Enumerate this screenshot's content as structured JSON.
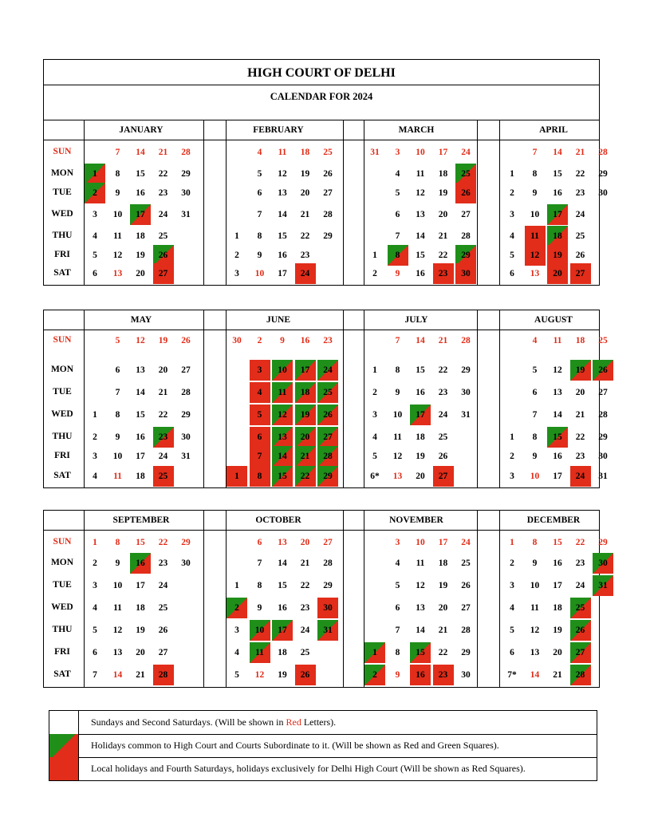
{
  "title": "HIGH COURT OF DELHI",
  "subtitle": "CALENDAR FOR 2024",
  "day_names": [
    "SUN",
    "MON",
    "TUE",
    "WED",
    "THU",
    "FRI",
    "SAT"
  ],
  "colors": {
    "red": "#e12d1a",
    "green": "#1f8f1a",
    "red_text": "#e02b17"
  },
  "months": [
    {
      "name": "JANUARY",
      "cols": [
        [
          null,
          1,
          2,
          3,
          4,
          5,
          6
        ],
        [
          7,
          8,
          9,
          10,
          11,
          12,
          13
        ],
        [
          14,
          15,
          16,
          17,
          18,
          19,
          20
        ],
        [
          21,
          22,
          23,
          24,
          25,
          26,
          27
        ],
        [
          28,
          29,
          30,
          31,
          null,
          null,
          null
        ]
      ],
      "rg": [
        1,
        2,
        17,
        26
      ],
      "rq": [
        27
      ],
      "red": [
        13
      ]
    },
    {
      "name": "FEBRUARY",
      "cols": [
        [
          null,
          null,
          null,
          null,
          1,
          2,
          3
        ],
        [
          4,
          5,
          6,
          7,
          8,
          9,
          10
        ],
        [
          11,
          12,
          13,
          14,
          15,
          16,
          17
        ],
        [
          18,
          19,
          20,
          21,
          22,
          23,
          24
        ],
        [
          25,
          26,
          27,
          28,
          29,
          null,
          null
        ]
      ],
      "rg": [],
      "rq": [
        24
      ],
      "red": [
        10
      ]
    },
    {
      "name": "MARCH",
      "cols": [
        [
          31,
          null,
          null,
          null,
          null,
          1,
          2
        ],
        [
          3,
          4,
          5,
          6,
          7,
          8,
          9
        ],
        [
          10,
          11,
          12,
          13,
          14,
          15,
          16
        ],
        [
          17,
          18,
          19,
          20,
          21,
          22,
          23
        ],
        [
          24,
          25,
          26,
          27,
          28,
          29,
          30
        ]
      ],
      "rg": [
        8,
        25,
        29
      ],
      "rq": [
        26,
        23,
        30
      ],
      "red": [
        9
      ]
    },
    {
      "name": "APRIL",
      "cols": [
        [
          null,
          1,
          2,
          3,
          4,
          5,
          6
        ],
        [
          7,
          8,
          9,
          10,
          11,
          12,
          13
        ],
        [
          14,
          15,
          16,
          17,
          18,
          19,
          20
        ],
        [
          21,
          22,
          23,
          24,
          25,
          26,
          27
        ],
        [
          28,
          29,
          30,
          null,
          null,
          null,
          null
        ]
      ],
      "rg": [
        17,
        18
      ],
      "rq": [
        11,
        12,
        19,
        20,
        27
      ],
      "red": [
        13
      ]
    },
    {
      "name": "MAY",
      "cols": [
        [
          null,
          null,
          null,
          1,
          2,
          3,
          4
        ],
        [
          5,
          6,
          7,
          8,
          9,
          10,
          11
        ],
        [
          12,
          13,
          14,
          15,
          16,
          17,
          18
        ],
        [
          19,
          20,
          21,
          22,
          23,
          24,
          25
        ],
        [
          26,
          27,
          28,
          29,
          30,
          31,
          null
        ]
      ],
      "rg": [
        23
      ],
      "rq": [
        25
      ],
      "red": [
        11
      ]
    },
    {
      "name": "JUNE",
      "cols": [
        [
          30,
          null,
          null,
          null,
          null,
          null,
          1
        ],
        [
          2,
          3,
          4,
          5,
          6,
          7,
          8
        ],
        [
          9,
          10,
          11,
          12,
          13,
          14,
          15
        ],
        [
          16,
          17,
          18,
          19,
          20,
          21,
          22
        ],
        [
          23,
          24,
          25,
          26,
          27,
          28,
          29
        ]
      ],
      "rg": [
        10,
        11,
        12,
        13,
        14,
        15,
        17,
        18,
        19,
        20,
        21,
        22,
        24,
        25,
        26,
        27,
        28,
        29
      ],
      "rq": [
        1,
        3,
        4,
        5,
        6,
        7,
        8
      ],
      "red": [
        8
      ]
    },
    {
      "name": "JULY",
      "cols": [
        [
          null,
          1,
          2,
          3,
          4,
          5,
          "6*"
        ],
        [
          7,
          8,
          9,
          10,
          11,
          12,
          13
        ],
        [
          14,
          15,
          16,
          17,
          18,
          19,
          20
        ],
        [
          21,
          22,
          23,
          24,
          25,
          26,
          27
        ],
        [
          28,
          29,
          30,
          31,
          null,
          null,
          null
        ]
      ],
      "rg": [
        17
      ],
      "rq": [
        27
      ],
      "red": [
        13
      ]
    },
    {
      "name": "AUGUST",
      "cols": [
        [
          null,
          null,
          null,
          null,
          1,
          2,
          3
        ],
        [
          4,
          5,
          6,
          7,
          8,
          9,
          10
        ],
        [
          11,
          12,
          13,
          14,
          15,
          16,
          17
        ],
        [
          18,
          19,
          20,
          21,
          22,
          23,
          24
        ],
        [
          25,
          26,
          27,
          28,
          29,
          30,
          31
        ]
      ],
      "rg": [
        19,
        26,
        15
      ],
      "rq": [
        24
      ],
      "red": [
        10
      ]
    },
    {
      "name": "SEPTEMBER",
      "cols": [
        [
          1,
          2,
          3,
          4,
          5,
          6,
          7
        ],
        [
          8,
          9,
          10,
          11,
          12,
          13,
          14
        ],
        [
          15,
          16,
          17,
          18,
          19,
          20,
          21
        ],
        [
          22,
          23,
          24,
          25,
          26,
          27,
          28
        ],
        [
          29,
          30,
          null,
          null,
          null,
          null,
          null
        ]
      ],
      "rg": [
        16
      ],
      "rq": [
        28
      ],
      "red": [
        14
      ]
    },
    {
      "name": "OCTOBER",
      "cols": [
        [
          null,
          null,
          1,
          2,
          3,
          4,
          5
        ],
        [
          6,
          7,
          8,
          9,
          10,
          11,
          12
        ],
        [
          13,
          14,
          15,
          16,
          17,
          18,
          19
        ],
        [
          20,
          21,
          22,
          23,
          24,
          25,
          26
        ],
        [
          27,
          28,
          29,
          30,
          31,
          null,
          null
        ]
      ],
      "rg": [
        2,
        10,
        11,
        17,
        31
      ],
      "rq": [
        30,
        26
      ],
      "red": [
        12
      ]
    },
    {
      "name": "NOVEMBER",
      "cols": [
        [
          null,
          null,
          null,
          null,
          null,
          1,
          2
        ],
        [
          3,
          4,
          5,
          6,
          7,
          8,
          9
        ],
        [
          10,
          11,
          12,
          13,
          14,
          15,
          16
        ],
        [
          17,
          18,
          19,
          20,
          21,
          22,
          23
        ],
        [
          24,
          25,
          26,
          27,
          28,
          29,
          30
        ]
      ],
      "rg": [
        1,
        2,
        15
      ],
      "rq": [
        16,
        23
      ],
      "red": [
        9
      ]
    },
    {
      "name": "DECEMBER",
      "cols": [
        [
          1,
          2,
          3,
          4,
          5,
          6,
          "7*"
        ],
        [
          8,
          9,
          10,
          11,
          12,
          13,
          14
        ],
        [
          15,
          16,
          17,
          18,
          19,
          20,
          21
        ],
        [
          22,
          23,
          24,
          25,
          26,
          27,
          28
        ],
        [
          29,
          30,
          31,
          null,
          null,
          null,
          null
        ]
      ],
      "rg": [
        30,
        31,
        25,
        26,
        27,
        28
      ],
      "rq": [],
      "red": [
        14
      ]
    }
  ],
  "legend": [
    {
      "pre": "Sundays and Second Saturdays.  (Will be shown in ",
      "red": "Red",
      "post": " Letters)."
    },
    {
      "pre": "Holidays common to High Court and Courts Subordinate to it. (Will be shown as Red and Green Squares).",
      "red": "",
      "post": ""
    },
    {
      "pre": "Local holidays and Fourth Saturdays, holidays exclusively for Delhi High Court (Will be shown as Red Squares).",
      "red": "",
      "post": ""
    }
  ]
}
